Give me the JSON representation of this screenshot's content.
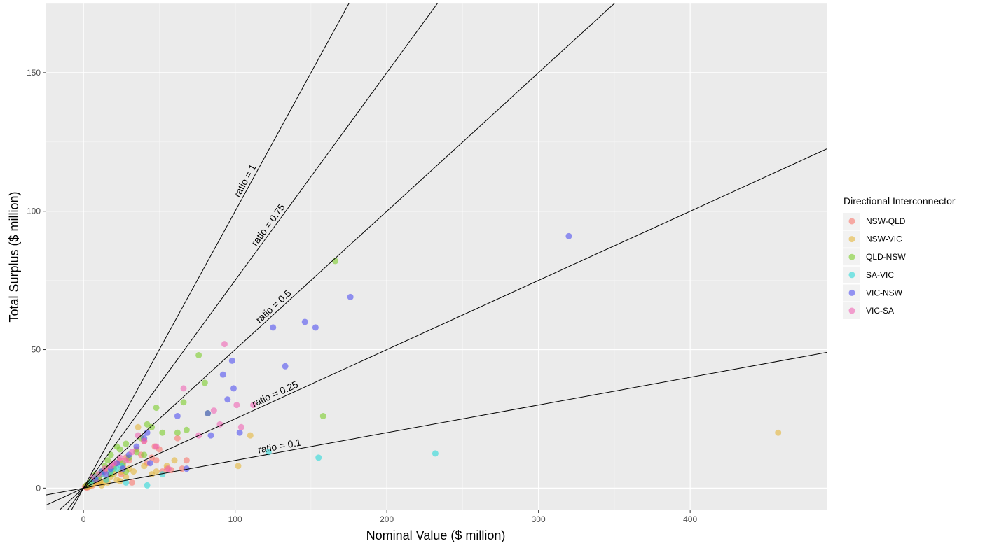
{
  "chart_data": {
    "type": "scatter",
    "title": "",
    "xlabel": "Nominal Value ($ million)",
    "ylabel": "Total Surplus ($ million)",
    "xlim": [
      -25,
      490
    ],
    "ylim": [
      -8,
      175
    ],
    "xticks": [
      0,
      100,
      200,
      300,
      400
    ],
    "yticks": [
      0,
      50,
      100,
      150
    ],
    "grid": true,
    "legend": {
      "title": "Directional Interconnector",
      "position": "right"
    },
    "reference_lines": [
      {
        "ratio": 1,
        "label": "ratio = 1"
      },
      {
        "ratio": 0.75,
        "label": "ratio = 0.75"
      },
      {
        "ratio": 0.5,
        "label": "ratio = 0.5"
      },
      {
        "ratio": 0.25,
        "label": "ratio = 0.25"
      },
      {
        "ratio": 0.1,
        "label": "ratio = 0.1"
      }
    ],
    "series": [
      {
        "name": "NSW-QLD",
        "color": "#F8766D",
        "points": [
          [
            1,
            0.5
          ],
          [
            2,
            1
          ],
          [
            3,
            0.8
          ],
          [
            4,
            1.5
          ],
          [
            5,
            2
          ],
          [
            6,
            1
          ],
          [
            7,
            3
          ],
          [
            8,
            2.5
          ],
          [
            10,
            4
          ],
          [
            12,
            5
          ],
          [
            14,
            6
          ],
          [
            16,
            7
          ],
          [
            18,
            5
          ],
          [
            20,
            8
          ],
          [
            22,
            9
          ],
          [
            24,
            10
          ],
          [
            26,
            8
          ],
          [
            28,
            11
          ],
          [
            30,
            10
          ],
          [
            32,
            2
          ],
          [
            35,
            14
          ],
          [
            38,
            12
          ],
          [
            40,
            17
          ],
          [
            42,
            9
          ],
          [
            45,
            11
          ],
          [
            47,
            15
          ],
          [
            50,
            14
          ],
          [
            52,
            6
          ],
          [
            55,
            7
          ],
          [
            58,
            6.5
          ],
          [
            62,
            18
          ],
          [
            65,
            7
          ],
          [
            68,
            10
          ],
          [
            48,
            10
          ],
          [
            25,
            5
          ],
          [
            15,
            3
          ],
          [
            9,
            2
          ],
          [
            3,
            0.3
          ],
          [
            2,
            0.2
          ],
          [
            1.5,
            0.4
          ],
          [
            4,
            0.8
          ],
          [
            5,
            1.2
          ]
        ]
      },
      {
        "name": "NSW-VIC",
        "color": "#E5B53B",
        "points": [
          [
            3,
            0.5
          ],
          [
            5,
            1
          ],
          [
            7,
            1.5
          ],
          [
            9,
            2
          ],
          [
            11,
            2.5
          ],
          [
            13,
            1.8
          ],
          [
            15,
            3
          ],
          [
            18,
            4
          ],
          [
            20,
            5
          ],
          [
            22,
            3
          ],
          [
            25,
            6
          ],
          [
            28,
            4
          ],
          [
            30,
            7
          ],
          [
            33,
            6
          ],
          [
            36,
            22
          ],
          [
            40,
            8
          ],
          [
            45,
            5
          ],
          [
            48,
            6
          ],
          [
            55,
            8
          ],
          [
            60,
            10
          ],
          [
            102,
            8
          ],
          [
            110,
            19
          ],
          [
            458,
            20
          ],
          [
            12,
            1
          ],
          [
            16,
            2
          ],
          [
            24,
            2.5
          ]
        ]
      },
      {
        "name": "QLD-NSW",
        "color": "#7CCD2A",
        "points": [
          [
            2,
            1
          ],
          [
            4,
            2
          ],
          [
            6,
            3
          ],
          [
            8,
            5
          ],
          [
            10,
            4
          ],
          [
            12,
            6
          ],
          [
            14,
            8
          ],
          [
            16,
            10
          ],
          [
            18,
            12
          ],
          [
            20,
            7
          ],
          [
            22,
            15
          ],
          [
            24,
            14
          ],
          [
            26,
            9
          ],
          [
            28,
            16
          ],
          [
            30,
            11
          ],
          [
            35,
            13
          ],
          [
            38,
            18
          ],
          [
            40,
            12
          ],
          [
            42,
            23
          ],
          [
            45,
            22
          ],
          [
            48,
            29
          ],
          [
            52,
            20
          ],
          [
            62,
            20
          ],
          [
            66,
            31
          ],
          [
            68,
            21
          ],
          [
            76,
            48
          ],
          [
            80,
            38
          ],
          [
            82,
            27
          ],
          [
            158,
            26
          ],
          [
            166,
            82
          ],
          [
            18,
            5
          ],
          [
            28,
            6
          ]
        ]
      },
      {
        "name": "SA-VIC",
        "color": "#2BD9D9",
        "points": [
          [
            5,
            2
          ],
          [
            8,
            4
          ],
          [
            12,
            5
          ],
          [
            15,
            3
          ],
          [
            18,
            6
          ],
          [
            22,
            7
          ],
          [
            25,
            8
          ],
          [
            28,
            2
          ],
          [
            42,
            1
          ],
          [
            52,
            5
          ],
          [
            122,
            13
          ],
          [
            155,
            11
          ],
          [
            232,
            12.5
          ]
        ]
      },
      {
        "name": "VIC-NSW",
        "color": "#5050F0",
        "points": [
          [
            8,
            3
          ],
          [
            12,
            6
          ],
          [
            15,
            5
          ],
          [
            18,
            7
          ],
          [
            22,
            9
          ],
          [
            26,
            7
          ],
          [
            30,
            12
          ],
          [
            35,
            15
          ],
          [
            40,
            18
          ],
          [
            42,
            20
          ],
          [
            44,
            9
          ],
          [
            62,
            26
          ],
          [
            68,
            7
          ],
          [
            82,
            27
          ],
          [
            84,
            19
          ],
          [
            92,
            41
          ],
          [
            95,
            32
          ],
          [
            98,
            46
          ],
          [
            99,
            36
          ],
          [
            103,
            20
          ],
          [
            125,
            58
          ],
          [
            133,
            44
          ],
          [
            146,
            60
          ],
          [
            153,
            58
          ],
          [
            176,
            69
          ],
          [
            320,
            91
          ]
        ]
      },
      {
        "name": "VIC-SA",
        "color": "#F064B4",
        "points": [
          [
            6,
            4
          ],
          [
            10,
            5
          ],
          [
            14,
            7
          ],
          [
            18,
            8
          ],
          [
            20,
            9
          ],
          [
            24,
            11
          ],
          [
            28,
            10
          ],
          [
            32,
            13
          ],
          [
            36,
            19
          ],
          [
            40,
            17
          ],
          [
            48,
            15
          ],
          [
            56,
            7
          ],
          [
            66,
            36
          ],
          [
            76,
            19
          ],
          [
            86,
            28
          ],
          [
            90,
            23
          ],
          [
            93,
            52
          ],
          [
            101,
            30
          ],
          [
            104,
            22
          ],
          [
            112,
            30
          ]
        ]
      }
    ]
  }
}
